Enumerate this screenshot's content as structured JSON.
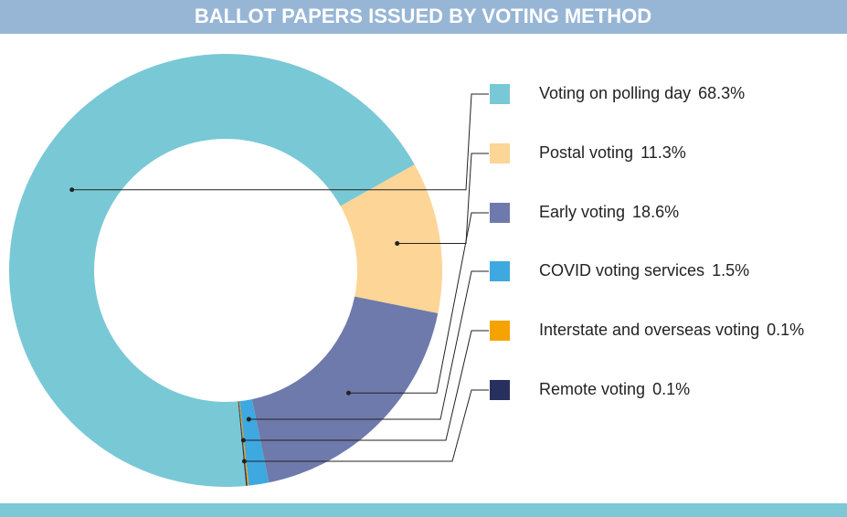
{
  "chart_data": {
    "type": "donut",
    "title": "BALLOT PAPERS ISSUED BY VOTING METHOD",
    "categories": [
      "Voting on polling day",
      "Postal voting",
      "Early voting",
      "COVID voting services",
      "Interstate and overseas voting",
      "Remote voting"
    ],
    "values": [
      68.3,
      11.3,
      18.6,
      1.5,
      0.1,
      0.1
    ],
    "value_labels": [
      "68.3%",
      "11.3%",
      "18.6%",
      "1.5%",
      "0.1%",
      "0.1%"
    ],
    "colors": [
      "#79c8d6",
      "#fdd597",
      "#6e7aab",
      "#3ea8e0",
      "#f5a300",
      "#27305e"
    ]
  }
}
